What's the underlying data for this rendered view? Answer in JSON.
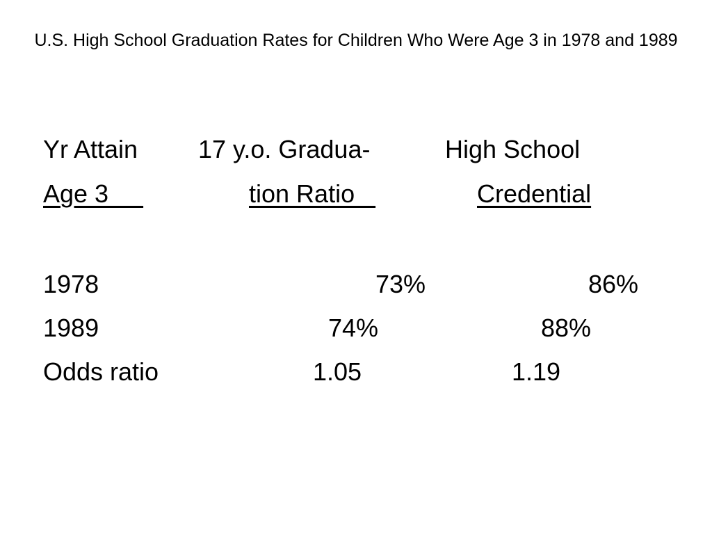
{
  "title": "U.S. High School Graduation Rates for Children Who Were Age 3 in 1978 and 1989",
  "header": {
    "row1": {
      "col1": "Yr Attain",
      "col2": "17 y.o. Gradua-",
      "col3": "High School"
    },
    "row2": {
      "col1": "Age 3     ",
      "col2": "tion Ratio   ",
      "col3": "Credential"
    }
  },
  "rows": [
    {
      "label": "1978",
      "grad_ratio": "73%",
      "credential": "86%"
    },
    {
      "label": "1989",
      "grad_ratio": "74%",
      "credential": "88%"
    },
    {
      "label": "Odds ratio",
      "grad_ratio": "1.05",
      "credential": "1.19"
    }
  ]
}
